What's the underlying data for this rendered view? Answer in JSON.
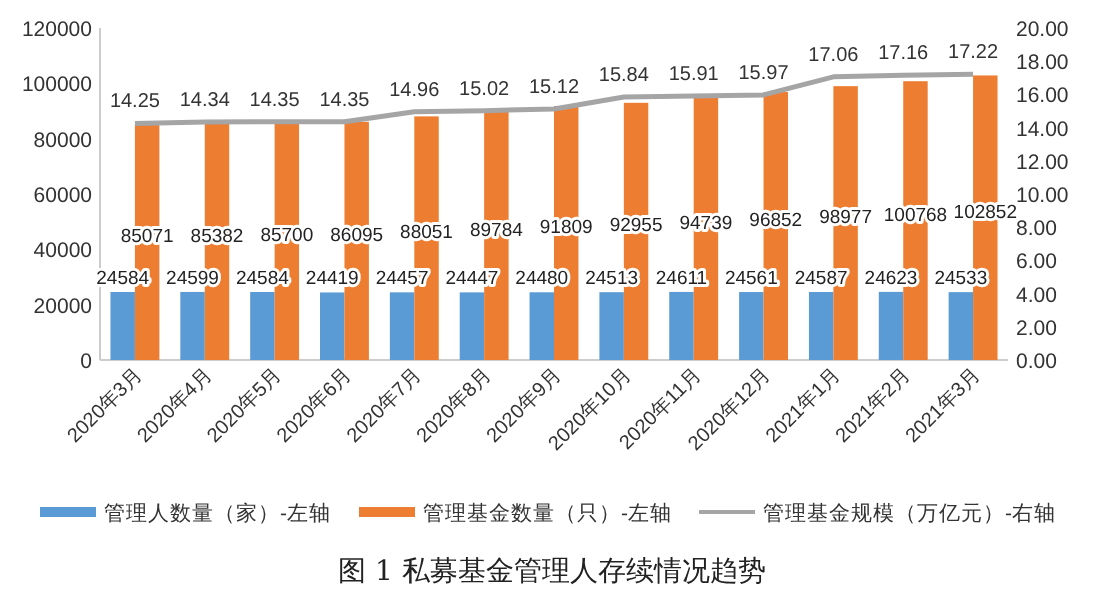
{
  "chart_data": {
    "type": "bar",
    "title": "图 1 私募基金管理人存续情况趋势",
    "categories": [
      "2020年3月",
      "2020年4月",
      "2020年5月",
      "2020年6月",
      "2020年7月",
      "2020年8月",
      "2020年9月",
      "2020年10月",
      "2020年11月",
      "2020年12月",
      "2021年1月",
      "2021年2月",
      "2021年3月"
    ],
    "series": [
      {
        "name": "管理人数量（家）-左轴",
        "color": "#5b9bd5",
        "values": [
          24584,
          24599,
          24584,
          24419,
          24457,
          24447,
          24480,
          24513,
          24611,
          24561,
          24587,
          24623,
          24533
        ]
      },
      {
        "name": "管理基金数量（只）-左轴",
        "color": "#ed7d31",
        "values": [
          85071,
          85382,
          85700,
          86095,
          88051,
          89784,
          91809,
          92955,
          94739,
          96852,
          98977,
          100768,
          102852
        ]
      },
      {
        "name": "管理基金规模（万亿元）-右轴",
        "type": "line",
        "axis": "y2",
        "color": "#a5a5a5",
        "values": [
          14.25,
          14.34,
          14.35,
          14.35,
          14.96,
          15.02,
          15.12,
          15.84,
          15.91,
          15.97,
          17.06,
          17.16,
          17.22
        ]
      }
    ],
    "ylim": [
      0,
      120000
    ],
    "yticks": [
      0,
      20000,
      40000,
      60000,
      80000,
      100000,
      120000
    ],
    "y2lim": [
      0,
      20
    ],
    "y2ticks": [
      {
        "value": 0,
        "label": "0.00"
      },
      {
        "value": 2,
        "label": "2.00"
      },
      {
        "value": 4,
        "label": "4.00"
      },
      {
        "value": 6,
        "label": "6.00"
      },
      {
        "value": 8,
        "label": "8.00"
      },
      {
        "value": 10,
        "label": "10.00"
      },
      {
        "value": 12,
        "label": "12.00"
      },
      {
        "value": 14,
        "label": "14.00"
      },
      {
        "value": 16,
        "label": "16.00"
      },
      {
        "value": 18,
        "label": "18.00"
      },
      {
        "value": 20,
        "label": "20.00"
      }
    ],
    "data_labels": true,
    "legend": "bottom",
    "grid": false
  }
}
